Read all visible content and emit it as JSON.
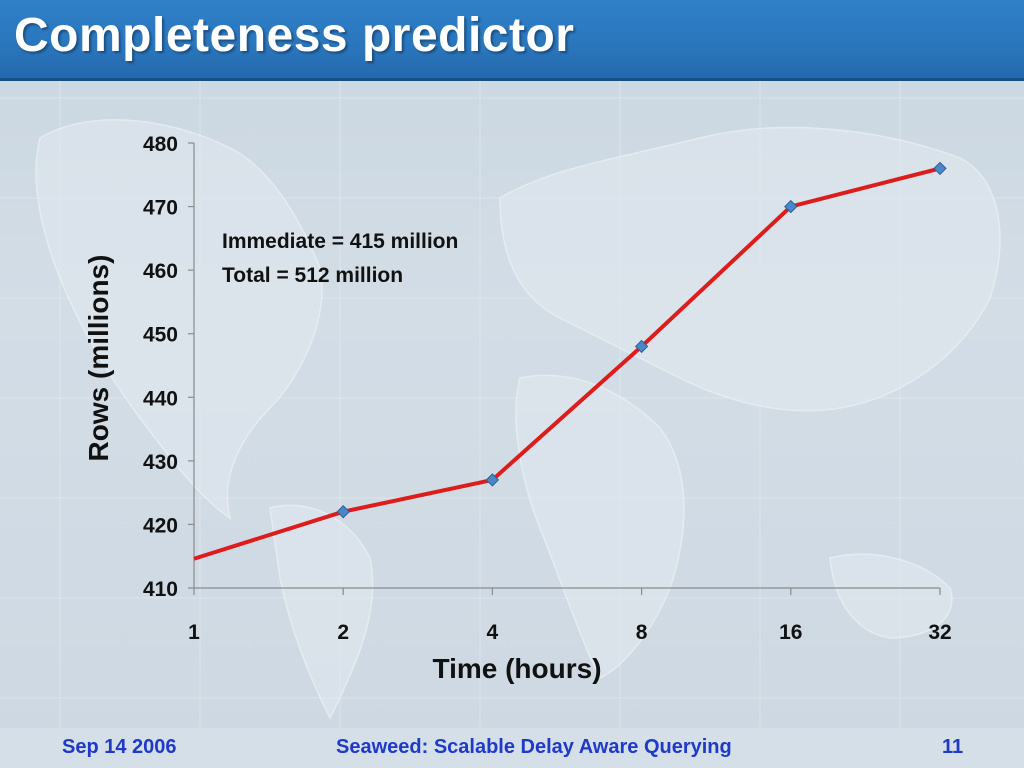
{
  "slide": {
    "title": "Completeness predictor",
    "footer_date": "Sep 14 2006",
    "footer_title": "Seaweed: Scalable Delay Aware Querying",
    "page_number": "11"
  },
  "chart_data": {
    "type": "line",
    "x_scale": "log2",
    "categories": [
      "1",
      "2",
      "4",
      "8",
      "16",
      "32"
    ],
    "x": [
      1,
      2,
      4,
      8,
      16,
      32
    ],
    "series": [
      {
        "values": [
          414.6,
          422,
          427,
          448,
          470,
          476
        ],
        "color": "#dd1c1c",
        "marker_color": "#4a86c8"
      }
    ],
    "marker_on_first_point": false,
    "xlabel": "Time (hours)",
    "ylabel": "Rows (millions)",
    "ylim": [
      410,
      480
    ],
    "yticks": [
      410,
      420,
      430,
      440,
      450,
      460,
      470,
      480
    ],
    "annotations": [
      "Immediate = 415 million",
      "Total = 512 million"
    ],
    "grid": false
  }
}
